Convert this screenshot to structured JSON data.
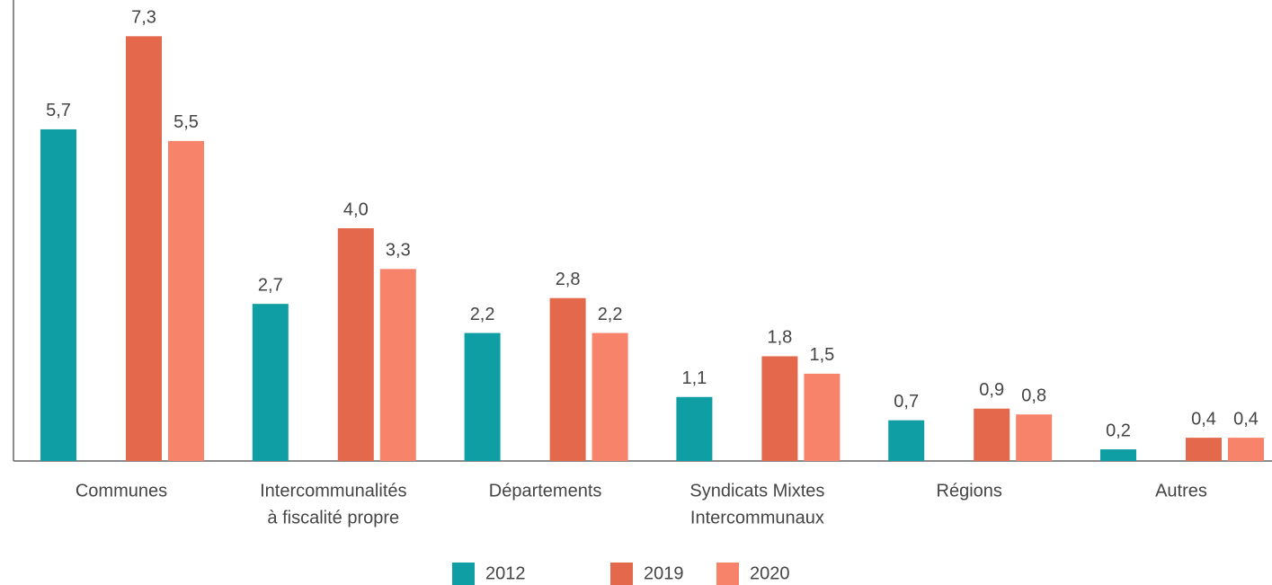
{
  "chart_data": {
    "type": "bar",
    "categories": [
      [
        "Communes"
      ],
      [
        "Intercommunalités",
        "à fiscalité propre"
      ],
      [
        "Départements"
      ],
      [
        "Syndicats Mixtes",
        "Intercommunaux"
      ],
      [
        "Régions"
      ],
      [
        "Autres"
      ]
    ],
    "series": [
      {
        "name": "2012",
        "color": "#0f9ea3",
        "values": [
          5.7,
          2.7,
          2.2,
          1.1,
          0.7,
          0.2
        ],
        "value_labels": [
          "5,7",
          "2,7",
          "2,2",
          "1,1",
          "0,7",
          "0,2"
        ]
      },
      {
        "name": "2019",
        "color": "#e4694c",
        "values": [
          7.3,
          4.0,
          2.8,
          1.8,
          0.9,
          0.4
        ],
        "value_labels": [
          "7,3",
          "4,0",
          "2,8",
          "1,8",
          "0,9",
          "0,4"
        ]
      },
      {
        "name": "2020",
        "color": "#f7836b",
        "values": [
          5.5,
          3.3,
          2.2,
          1.5,
          0.8,
          0.4
        ],
        "value_labels": [
          "5,5",
          "3,3",
          "2,2",
          "1,5",
          "0,8",
          "0,4"
        ]
      }
    ],
    "ylim": [
      0,
      8
    ]
  }
}
